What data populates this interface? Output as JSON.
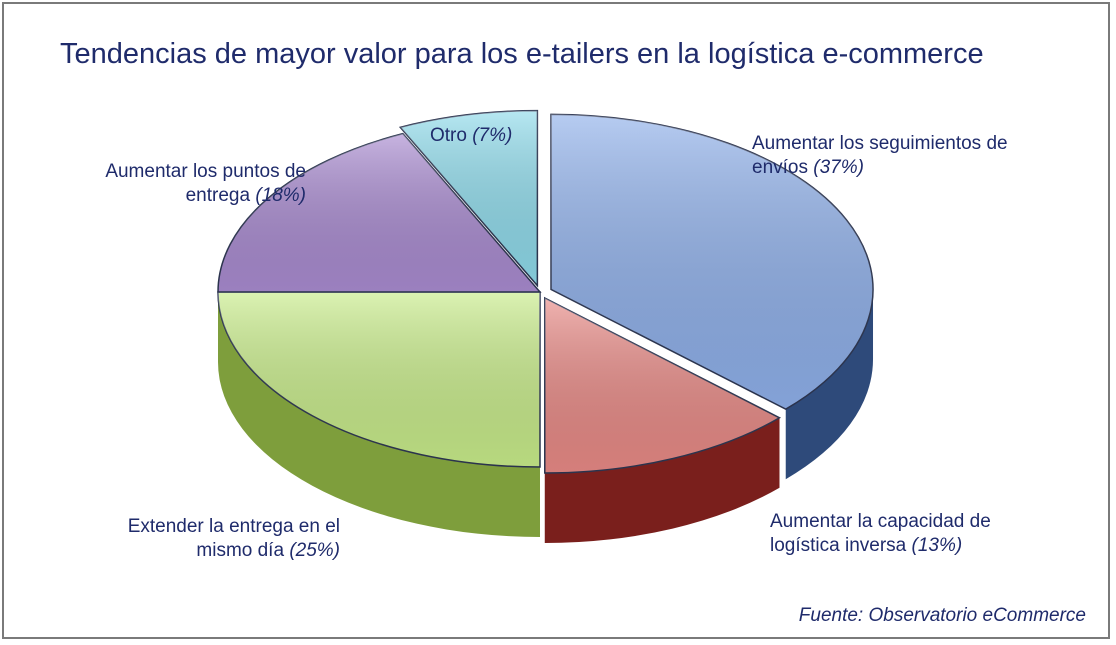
{
  "chart_data": {
    "type": "pie",
    "title": "Tendencias de mayor valor para los e-tailers en la logística e-commerce",
    "slices": [
      {
        "label": "Aumentar los seguimientos de envíos",
        "value": 37,
        "pct_text": "(37%)",
        "color_top": "#8fb0ea",
        "color_side": "#2e4a7a"
      },
      {
        "label": "Aumentar la capacidad de logística inversa",
        "value": 13,
        "pct_text": "(13%)",
        "color_top": "#e88a86",
        "color_side": "#7a1f1c"
      },
      {
        "label": "Extender la entrega en el mismo día",
        "value": 25,
        "pct_text": "(25%)",
        "color_top": "#c8ec8a",
        "color_side": "#7e9e3c"
      },
      {
        "label": "Aumentar los puntos de entrega",
        "value": 18,
        "pct_text": "(18%)",
        "color_top": "#a98bd0",
        "color_side": "#5c4384"
      },
      {
        "label": "Otro",
        "value": 7,
        "pct_text": "(7%)",
        "color_top": "#8fdbeb",
        "color_side": "#3c8aa0"
      }
    ],
    "source": "Fuente: Observatorio eCommerce"
  },
  "labels": {
    "seguimientos_line1": "Aumentar los seguimientos de",
    "seguimientos_line2": "envíos",
    "seguimientos_pct": "(37%)",
    "inversa_line1": "Aumentar la capacidad de",
    "inversa_line2": "logística inversa",
    "inversa_pct": "(13%)",
    "mismo_dia_line1": "Extender la entrega en el",
    "mismo_dia_line2": "mismo día",
    "mismo_dia_pct": "(25%)",
    "puntos_line1": "Aumentar los puntos de",
    "puntos_line2": "entrega",
    "puntos_pct": "(18%)",
    "otro_line1": "Otro",
    "otro_pct": "(7%)"
  }
}
